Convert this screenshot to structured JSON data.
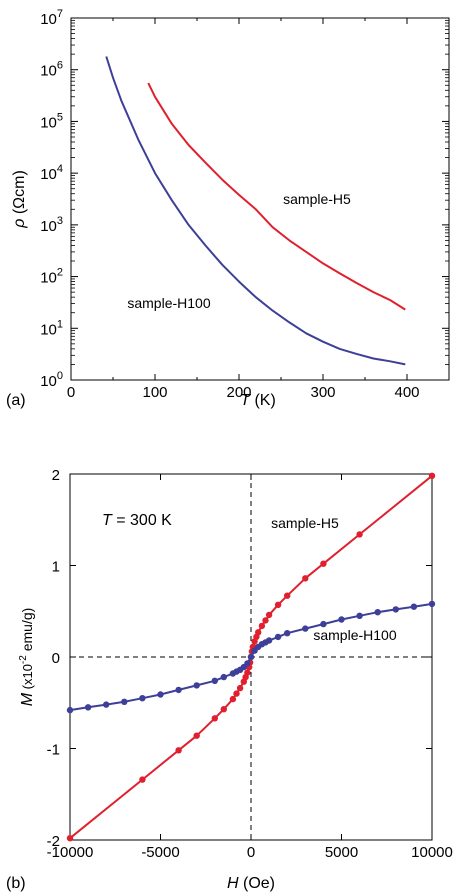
{
  "chart_data": [
    {
      "type": "line",
      "panel_label": "(a)",
      "xlabel_italic": "T",
      "xlabel_unit": " (K)",
      "ylabel_italic": "ρ",
      "ylabel_unit": " (Ωcm)",
      "xlim": [
        0,
        450
      ],
      "ylim": [
        1,
        10000000
      ],
      "y_scale": "log",
      "x_ticks": [
        {
          "value": 0,
          "label": "0"
        },
        {
          "value": 100,
          "label": "100"
        },
        {
          "value": 200,
          "label": "200"
        },
        {
          "value": 300,
          "label": "300"
        },
        {
          "value": 400,
          "label": "400"
        }
      ],
      "y_ticks": [
        {
          "value": 1,
          "base": "10",
          "exp": "0"
        },
        {
          "value": 10,
          "base": "10",
          "exp": "1"
        },
        {
          "value": 100,
          "base": "10",
          "exp": "2"
        },
        {
          "value": 1000,
          "base": "10",
          "exp": "3"
        },
        {
          "value": 10000,
          "base": "10",
          "exp": "4"
        },
        {
          "value": 100000,
          "base": "10",
          "exp": "5"
        },
        {
          "value": 1000000,
          "base": "10",
          "exp": "6"
        },
        {
          "value": 10000000,
          "base": "10",
          "exp": "7"
        }
      ],
      "grid": false,
      "series": [
        {
          "name": "sample-H5",
          "color": "#e0202e",
          "x": [
            92,
            100,
            120,
            140,
            160,
            180,
            200,
            220,
            240,
            260,
            280,
            300,
            320,
            340,
            360,
            380,
            398
          ],
          "y": [
            550000,
            300000,
            90000,
            35000,
            16000,
            7500,
            3800,
            2000,
            900,
            500,
            300,
            180,
            115,
            75,
            50,
            35,
            23
          ]
        },
        {
          "name": "sample-H100",
          "color": "#3d3f98",
          "x": [
            42,
            50,
            60,
            80,
            100,
            120,
            140,
            160,
            180,
            200,
            220,
            240,
            260,
            280,
            300,
            320,
            340,
            360,
            380,
            398
          ],
          "y": [
            1800000,
            700000,
            250000,
            45000,
            10000,
            3000,
            1000,
            400,
            170,
            80,
            40,
            22,
            13,
            8,
            5.5,
            4,
            3.2,
            2.6,
            2.3,
            2.0
          ]
        }
      ],
      "annotations": [
        {
          "text": "sample-H5",
          "x": 300,
          "y": 5000
        },
        {
          "text": "sample-H100",
          "x": 100,
          "y": 15
        }
      ]
    },
    {
      "type": "line",
      "panel_label": "(b)",
      "title_italic": "T",
      "title_rest": " = 300 K",
      "xlabel_italic": "H",
      "xlabel_unit": " (Oe)",
      "ylabel_italic": "M",
      "ylabel_unit_pre": " (x10",
      "ylabel_unit_sup": "-2",
      "ylabel_unit_post": " emu/g)",
      "xlim": [
        -10000,
        10000
      ],
      "ylim": [
        -2,
        2
      ],
      "x_ticks": [
        {
          "value": -10000,
          "label": "-10000"
        },
        {
          "value": -5000,
          "label": "-5000"
        },
        {
          "value": 0,
          "label": "0"
        },
        {
          "value": 5000,
          "label": "5000"
        },
        {
          "value": 10000,
          "label": "10000"
        }
      ],
      "y_ticks": [
        {
          "value": -2,
          "label": "-2"
        },
        {
          "value": -1,
          "label": "-1"
        },
        {
          "value": 0,
          "label": "0"
        },
        {
          "value": 1,
          "label": "1"
        },
        {
          "value": 2,
          "label": "2"
        }
      ],
      "grid": false,
      "zero_lines": true,
      "series": [
        {
          "name": "sample-H5",
          "color": "#e0202e",
          "x": [
            -10000,
            -6000,
            -4000,
            -3000,
            -2000,
            -1500,
            -1000,
            -800,
            -600,
            -400,
            -300,
            -200,
            -100,
            -50,
            0,
            50,
            100,
            200,
            300,
            400,
            600,
            800,
            1000,
            1500,
            2000,
            3000,
            4000,
            6000,
            10000
          ],
          "y": [
            -1.98,
            -1.34,
            -1.02,
            -0.86,
            -0.67,
            -0.57,
            -0.46,
            -0.4,
            -0.34,
            -0.27,
            -0.22,
            -0.17,
            -0.11,
            -0.06,
            0.0,
            0.06,
            0.11,
            0.17,
            0.22,
            0.27,
            0.34,
            0.4,
            0.46,
            0.57,
            0.67,
            0.86,
            1.02,
            1.34,
            1.98
          ]
        },
        {
          "name": "sample-H100",
          "color": "#3d3f98",
          "x": [
            -10000,
            -9000,
            -8000,
            -7000,
            -6000,
            -5000,
            -4000,
            -3000,
            -2000,
            -1500,
            -1000,
            -800,
            -600,
            -400,
            -200,
            0,
            200,
            400,
            600,
            800,
            1000,
            1500,
            2000,
            3000,
            4000,
            5000,
            6000,
            7000,
            8000,
            9000,
            10000
          ],
          "y": [
            -0.58,
            -0.55,
            -0.52,
            -0.49,
            -0.45,
            -0.41,
            -0.36,
            -0.31,
            -0.26,
            -0.22,
            -0.18,
            -0.16,
            -0.14,
            -0.11,
            -0.07,
            0.0,
            0.07,
            0.11,
            0.14,
            0.16,
            0.18,
            0.22,
            0.26,
            0.31,
            0.36,
            0.41,
            0.45,
            0.49,
            0.52,
            0.55,
            0.58
          ]
        }
      ],
      "annotations": [
        {
          "text": "sample-H5",
          "x": 3500,
          "y": 1.48
        },
        {
          "text": "sample-H100",
          "x": 6300,
          "y": 0.27
        }
      ]
    }
  ]
}
